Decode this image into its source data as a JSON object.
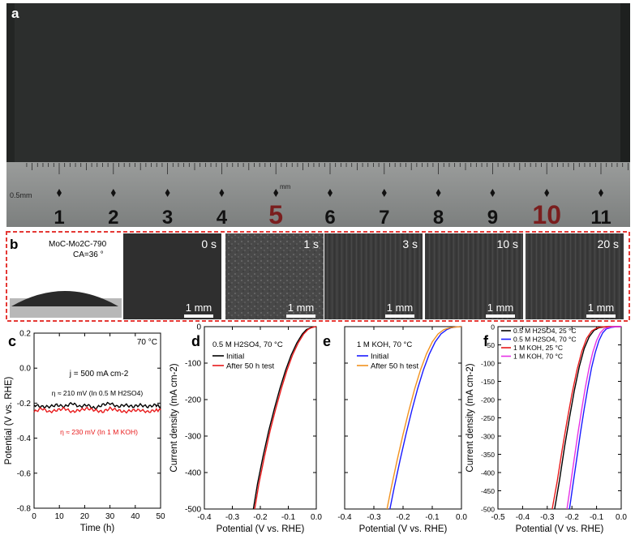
{
  "panels": {
    "a": {
      "label": "a",
      "ruler": {
        "unit_left": "0.5mm",
        "unit_mid": "mm",
        "numbers": [
          "1",
          "2",
          "3",
          "4",
          "5",
          "6",
          "7",
          "8",
          "9",
          "10",
          "11"
        ],
        "highlight": [
          "5",
          "10"
        ]
      }
    },
    "b": {
      "label": "b",
      "sample_label": "MoC-Mo2C-790",
      "contact_angle": "CA=36 °",
      "frames": [
        "0 s",
        "1 s",
        "3 s",
        "10 s",
        "20 s"
      ],
      "scale_bar": "1 mm"
    },
    "c": {
      "label": "c"
    },
    "d": {
      "label": "d"
    },
    "e": {
      "label": "e"
    },
    "f": {
      "label": "f"
    }
  },
  "chart_data": [
    {
      "panel": "c",
      "type": "line",
      "xlabel": "Time (h)",
      "ylabel": "Potential (V vs. RHE)",
      "xlim": [
        0,
        50
      ],
      "ylim": [
        -0.8,
        0.2
      ],
      "xticks": [
        "0",
        "10",
        "20",
        "30",
        "40",
        "50"
      ],
      "yticks": [
        "0.2",
        "0.0",
        "-0.2",
        "-0.4",
        "-0.6",
        "-0.8"
      ],
      "annotations": [
        "70 °C",
        "j = 500 mA cm-2",
        "η ≈ 210 mV (In 0.5 M H2SO4)",
        "η ≈ 230 mV (In 1 M KOH)"
      ],
      "colors": {
        "acid": "#000000",
        "alkaline": "#e8191a"
      },
      "series": [
        {
          "name": "η ≈ 210 mV (In 0.5 M H2SO4)",
          "x": [
            0,
            3,
            6,
            9,
            12,
            15,
            18,
            21,
            24,
            27,
            30,
            33,
            36,
            39,
            42,
            45,
            48,
            50
          ],
          "y": [
            -0.21,
            -0.22,
            -0.22,
            -0.21,
            -0.22,
            -0.2,
            -0.22,
            -0.21,
            -0.23,
            -0.21,
            -0.2,
            -0.22,
            -0.21,
            -0.22,
            -0.21,
            -0.22,
            -0.21,
            -0.22
          ]
        },
        {
          "name": "η ≈ 230 mV (In 1 M KOH)",
          "x": [
            0,
            3,
            6,
            9,
            12,
            15,
            18,
            21,
            24,
            27,
            30,
            33,
            36,
            39,
            42,
            45,
            48,
            50
          ],
          "y": [
            -0.25,
            -0.23,
            -0.25,
            -0.24,
            -0.23,
            -0.25,
            -0.24,
            -0.23,
            -0.24,
            -0.25,
            -0.23,
            -0.24,
            -0.25,
            -0.24,
            -0.24,
            -0.25,
            -0.24,
            -0.24
          ]
        }
      ]
    },
    {
      "panel": "d",
      "type": "line",
      "xlabel": "Potential (V vs. RHE)",
      "ylabel": "Current density (mA cm-2)",
      "xlim": [
        -0.4,
        0.0
      ],
      "ylim": [
        -500,
        0
      ],
      "xticks": [
        "-0.4",
        "-0.3",
        "-0.2",
        "-0.1",
        "0.0"
      ],
      "yticks": [
        "0",
        "-100",
        "-200",
        "-300",
        "-400",
        "-500"
      ],
      "legend_title": "0.5 M H2SO4, 70 °C",
      "series": [
        {
          "name": "Initial",
          "color": "#000000",
          "x": [
            -0.225,
            -0.21,
            -0.19,
            -0.17,
            -0.15,
            -0.13,
            -0.11,
            -0.09,
            -0.07,
            -0.05,
            -0.035,
            -0.02,
            -0.01,
            0.0
          ],
          "y": [
            -500,
            -430,
            -355,
            -285,
            -225,
            -170,
            -120,
            -78,
            -45,
            -20,
            -8,
            -3,
            -1,
            0
          ]
        },
        {
          "name": "After 50 h test",
          "color": "#e8191a",
          "x": [
            -0.22,
            -0.205,
            -0.185,
            -0.165,
            -0.145,
            -0.125,
            -0.105,
            -0.085,
            -0.065,
            -0.045,
            -0.03,
            -0.018,
            -0.008,
            0.0
          ],
          "y": [
            -500,
            -430,
            -355,
            -285,
            -225,
            -170,
            -120,
            -78,
            -45,
            -20,
            -8,
            -3,
            -1,
            0
          ]
        }
      ]
    },
    {
      "panel": "e",
      "type": "line",
      "xlabel": "Potential (V vs. RHE)",
      "ylabel": "",
      "xlim": [
        -0.4,
        0.0
      ],
      "ylim": [
        -500,
        0
      ],
      "xticks": [
        "-0.4",
        "-0.3",
        "-0.2",
        "-0.1",
        "0.0"
      ],
      "legend_title": "1 M KOH, 70 °C",
      "series": [
        {
          "name": "Initial",
          "color": "#1a1aff",
          "x": [
            -0.245,
            -0.23,
            -0.21,
            -0.19,
            -0.17,
            -0.15,
            -0.13,
            -0.11,
            -0.09,
            -0.07,
            -0.05,
            -0.035,
            -0.02,
            0.0
          ],
          "y": [
            -500,
            -440,
            -365,
            -295,
            -230,
            -170,
            -118,
            -75,
            -42,
            -20,
            -8,
            -3,
            -1,
            0
          ]
        },
        {
          "name": "After 50 h test",
          "color": "#f2921f",
          "x": [
            -0.255,
            -0.24,
            -0.22,
            -0.2,
            -0.18,
            -0.16,
            -0.14,
            -0.12,
            -0.1,
            -0.08,
            -0.06,
            -0.04,
            -0.02,
            0.0
          ],
          "y": [
            -500,
            -440,
            -365,
            -295,
            -230,
            -170,
            -118,
            -75,
            -42,
            -20,
            -8,
            -3,
            -1,
            0
          ]
        }
      ]
    },
    {
      "panel": "f",
      "type": "line",
      "xlabel": "Potential (V vs. RHE)",
      "ylabel": "Current density (mA cm-2)",
      "xlim": [
        -0.5,
        0.0
      ],
      "ylim": [
        -500,
        0
      ],
      "xticks": [
        "-0.5",
        "-0.4",
        "-0.3",
        "-0.2",
        "-0.1",
        "0.0"
      ],
      "yticks": [
        "0",
        "-50",
        "-100",
        "-150",
        "-200",
        "-250",
        "-300",
        "-350",
        "-400",
        "-450",
        "-500"
      ],
      "series": [
        {
          "name": "0.5 M H2SO4, 25 °C",
          "color": "#000000",
          "x": [
            -0.27,
            -0.25,
            -0.23,
            -0.21,
            -0.19,
            -0.17,
            -0.15,
            -0.13,
            -0.11,
            -0.09,
            -0.07,
            -0.05,
            -0.03,
            0.0
          ],
          "y": [
            -500,
            -420,
            -330,
            -250,
            -175,
            -110,
            -60,
            -28,
            -10,
            -3,
            -1,
            0,
            0,
            0
          ]
        },
        {
          "name": "0.5 M H2SO4, 70 °C",
          "color": "#1a1aff",
          "x": [
            -0.21,
            -0.195,
            -0.18,
            -0.165,
            -0.15,
            -0.135,
            -0.12,
            -0.105,
            -0.09,
            -0.075,
            -0.06,
            -0.04,
            -0.02,
            0.0
          ],
          "y": [
            -500,
            -430,
            -360,
            -290,
            -225,
            -165,
            -112,
            -70,
            -38,
            -17,
            -6,
            -2,
            0,
            0
          ]
        },
        {
          "name": "1 M KOH, 25 °C",
          "color": "#e8191a",
          "x": [
            -0.28,
            -0.26,
            -0.24,
            -0.22,
            -0.2,
            -0.18,
            -0.16,
            -0.14,
            -0.12,
            -0.1,
            -0.08,
            -0.06,
            -0.04,
            0.0
          ],
          "y": [
            -500,
            -425,
            -340,
            -260,
            -185,
            -120,
            -68,
            -32,
            -12,
            -4,
            -1,
            0,
            0,
            0
          ]
        },
        {
          "name": "1 M KOH, 70 °C",
          "color": "#e632e6",
          "x": [
            -0.22,
            -0.205,
            -0.19,
            -0.175,
            -0.16,
            -0.145,
            -0.13,
            -0.115,
            -0.1,
            -0.085,
            -0.07,
            -0.05,
            -0.03,
            0.0
          ],
          "y": [
            -500,
            -430,
            -360,
            -290,
            -225,
            -165,
            -112,
            -70,
            -38,
            -17,
            -6,
            -2,
            0,
            0
          ]
        }
      ]
    }
  ]
}
